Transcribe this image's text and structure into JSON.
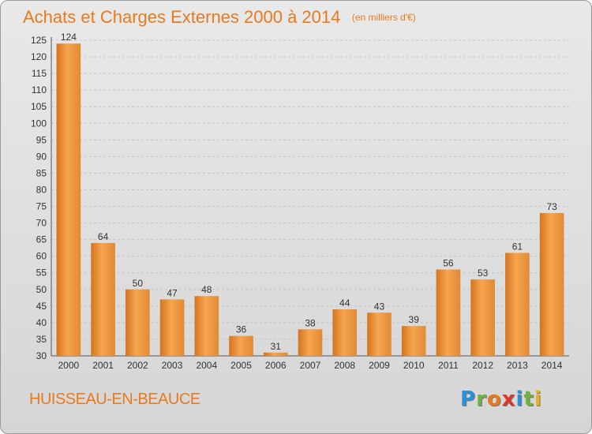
{
  "title": "Achats et Charges Externes 2000 à 2014",
  "subtitle": "(en milliers d'€)",
  "commune": "HUISSEAU-EN-BEAUCE",
  "logo": {
    "letters": [
      "P",
      "r",
      "o",
      "x",
      "i",
      "t",
      "i"
    ],
    "colors": [
      "#2a8fd6",
      "#6db33f",
      "#e87a1e",
      "#d93a2b",
      "#2a8fd6",
      "#6db33f",
      "#e8b21e"
    ]
  },
  "colors": {
    "accent": "#e87a1e",
    "bar_light": "#f7a54e",
    "bar_dark": "#d4741f"
  },
  "chart_data": {
    "type": "bar",
    "categories": [
      "2000",
      "2001",
      "2002",
      "2003",
      "2004",
      "2005",
      "2006",
      "2007",
      "2008",
      "2009",
      "2010",
      "2011",
      "2012",
      "2013",
      "2014"
    ],
    "values": [
      124,
      64,
      50,
      47,
      48,
      36,
      31,
      38,
      44,
      43,
      39,
      56,
      53,
      61,
      73
    ],
    "ylim": [
      30,
      125
    ],
    "yticks": [
      30,
      35,
      40,
      45,
      50,
      55,
      60,
      65,
      70,
      75,
      80,
      85,
      90,
      95,
      100,
      105,
      110,
      115,
      120,
      125
    ],
    "grid": true,
    "data_labels": true
  }
}
